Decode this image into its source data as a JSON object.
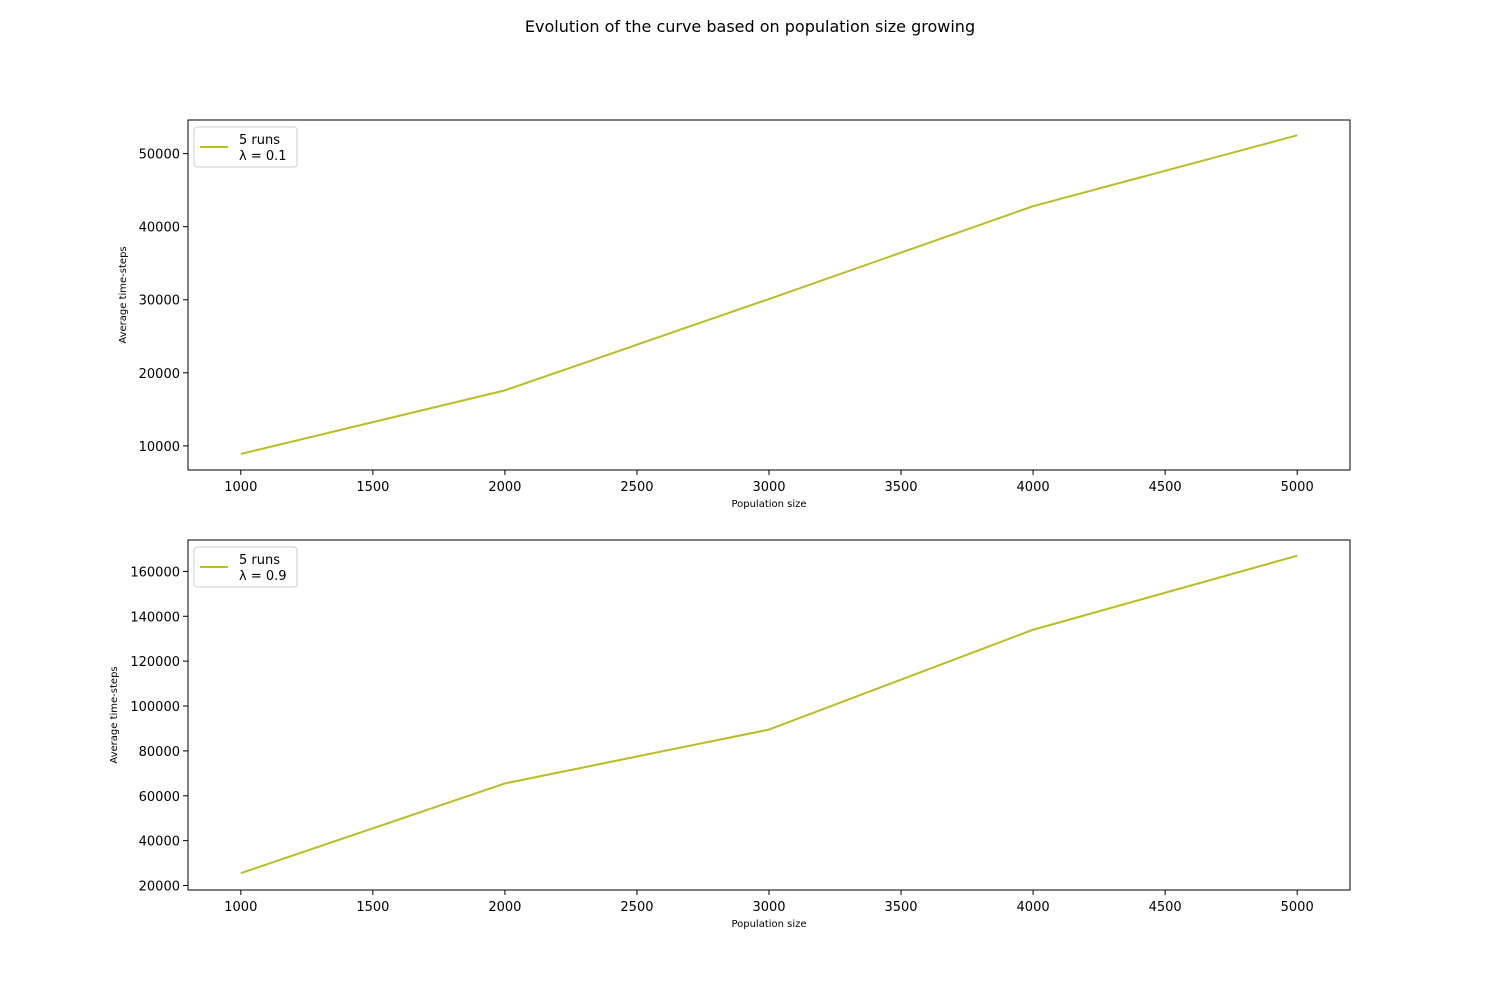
{
  "figure_title": "Evolution of the curve based on population size growing",
  "colors": {
    "line": "#bcbd22",
    "axis": "#000000"
  },
  "chart_data": [
    {
      "type": "line",
      "xlabel": "Population size",
      "ylabel": "Average time-steps",
      "x": [
        1000,
        2000,
        3000,
        4000,
        5000
      ],
      "xlim": [
        800,
        5200
      ],
      "ylim": [
        6700,
        54600
      ],
      "xticks": [
        1000,
        1500,
        2000,
        2500,
        3000,
        3500,
        4000,
        4500,
        5000
      ],
      "yticks": [
        10000,
        20000,
        30000,
        40000,
        50000
      ],
      "legend_position": "upper-left",
      "series": [
        {
          "name": "5 runs\nλ = 0.1",
          "legend_lines": [
            "5 runs",
            "λ = 0.1"
          ],
          "color": "#bcbd22",
          "values": [
            8900,
            17600,
            30100,
            42800,
            52500
          ]
        }
      ]
    },
    {
      "type": "line",
      "xlabel": "Population size",
      "ylabel": "Average time-steps",
      "x": [
        1000,
        2000,
        3000,
        4000,
        5000
      ],
      "xlim": [
        800,
        5200
      ],
      "ylim": [
        18000,
        174000
      ],
      "xticks": [
        1000,
        1500,
        2000,
        2500,
        3000,
        3500,
        4000,
        4500,
        5000
      ],
      "yticks": [
        20000,
        40000,
        60000,
        80000,
        100000,
        120000,
        140000,
        160000
      ],
      "legend_position": "upper-left",
      "series": [
        {
          "name": "5 runs\nλ = 0.9",
          "legend_lines": [
            "5 runs",
            "λ = 0.9"
          ],
          "color": "#bcbd22",
          "values": [
            25500,
            65500,
            89500,
            134000,
            167000
          ]
        }
      ]
    }
  ]
}
